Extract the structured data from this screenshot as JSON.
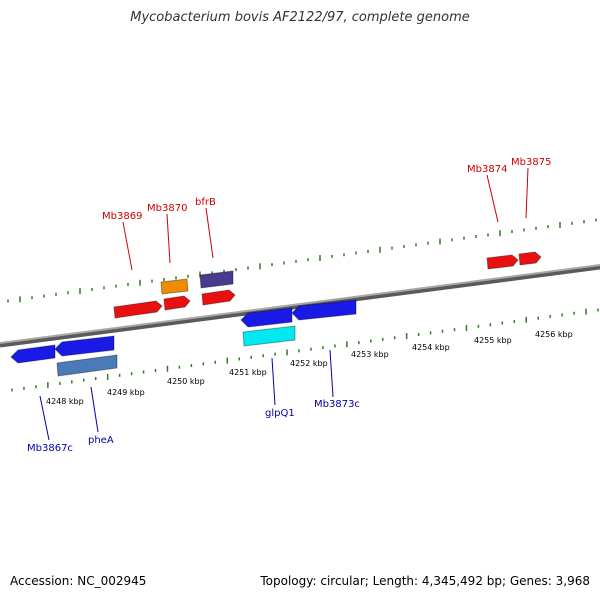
{
  "title": "Mycobacterium bovis AF2122/97, complete genome",
  "footer": {
    "accession": "Accession: NC_002945",
    "summary": "Topology: circular; Length: 4,345,492 bp; Genes: 3,968"
  },
  "colors": {
    "backbone": "#808080",
    "tick": "#2e7d1f",
    "forward_label": "#cc0000",
    "reverse_label": "#0000aa",
    "gene_red": "#e81010",
    "gene_orange": "#f08c00",
    "gene_purple": "#4a3a8c",
    "gene_blue": "#1a1ae6",
    "gene_steel": "#4a7ab8",
    "gene_cyan": "#00e8f0"
  },
  "scale_labels": [
    "4248 kbp",
    "4249 kbp",
    "4250 kbp",
    "4251 kbp",
    "4252 kbp",
    "4253 kbp",
    "4254 kbp",
    "4255 kbp",
    "4256 kbp"
  ],
  "gene_labels": {
    "forward": [
      "Mb3869",
      "Mb3870",
      "bfrB",
      "Mb3874",
      "Mb3875"
    ],
    "reverse": [
      "Mb3867c",
      "pheA",
      "glpQ1",
      "Mb3873c"
    ]
  }
}
